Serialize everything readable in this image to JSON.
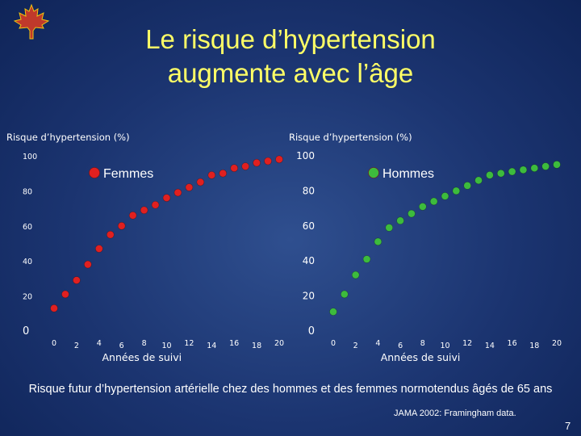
{
  "slide": {
    "title_line1": "Le risque d’hypertension",
    "title_line2": "augmente avec l’âge",
    "footnote": "Risque futur d’hypertension artérielle chez des hommes et des femmes normotendus âgés de 65 ans",
    "source": "JAMA 2002: Framingham data.",
    "page_number": "7"
  },
  "colors": {
    "title": "#ffff66",
    "femmes": "#e02020",
    "hommes": "#3dbb3d",
    "background": "#1b3470"
  },
  "chart_data": [
    {
      "type": "scatter",
      "ylabel": "Risque d’hypertension (%)",
      "xlabel": "Années de suivi",
      "legend": "Femmes",
      "legend_position": "top-left",
      "ylim": [
        0,
        100
      ],
      "xlim": [
        0,
        20
      ],
      "y_ticks": [
        "0",
        "20",
        "40",
        "60",
        "80",
        "100"
      ],
      "x_ticks": [
        "0",
        "2",
        "4",
        "6",
        "8",
        "10",
        "12",
        "14",
        "16",
        "18",
        "20"
      ],
      "series": [
        {
          "name": "Femmes",
          "x": [
            0,
            1,
            2,
            3,
            4,
            5,
            6,
            7,
            8,
            9,
            10,
            11,
            12,
            13,
            14,
            15,
            16,
            17,
            18,
            19,
            20
          ],
          "y": [
            13,
            21,
            29,
            38,
            47,
            55,
            60,
            66,
            69,
            72,
            76,
            79,
            82,
            85,
            89,
            90,
            93,
            94,
            96,
            97,
            98
          ]
        }
      ]
    },
    {
      "type": "scatter",
      "ylabel": "Risque d’hypertension (%)",
      "xlabel": "Années de suivi",
      "legend": "Hommes",
      "legend_position": "top-left",
      "ylim": [
        0,
        100
      ],
      "xlim": [
        0,
        20
      ],
      "y_ticks": [
        "0",
        "20",
        "40",
        "60",
        "80",
        "100"
      ],
      "x_ticks": [
        "0",
        "2",
        "4",
        "6",
        "8",
        "10",
        "12",
        "14",
        "16",
        "18",
        "20"
      ],
      "series": [
        {
          "name": "Hommes",
          "x": [
            0,
            1,
            2,
            3,
            4,
            5,
            6,
            7,
            8,
            9,
            10,
            11,
            12,
            13,
            14,
            15,
            16,
            17,
            18,
            19,
            20
          ],
          "y": [
            11,
            21,
            32,
            41,
            51,
            59,
            63,
            67,
            71,
            74,
            77,
            80,
            83,
            86,
            89,
            90,
            91,
            92,
            93,
            94,
            95
          ]
        }
      ]
    }
  ]
}
